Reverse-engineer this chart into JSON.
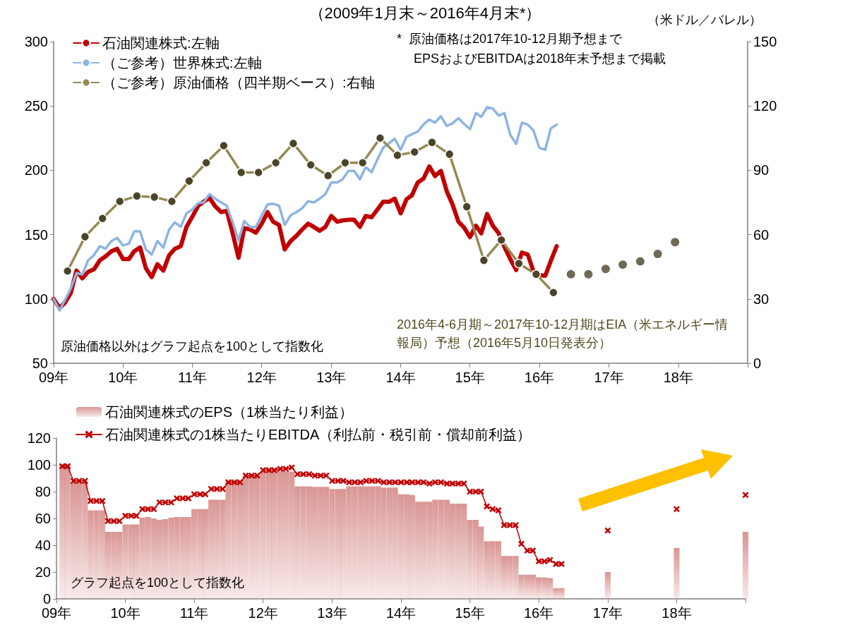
{
  "chart_data": [
    {
      "type": "line",
      "title": "（2009年1月末～2016年4月末*）",
      "y2label": "（米ドル／バレル）",
      "xlim": [
        "2009-01",
        "2019-01"
      ],
      "xticks": [
        {
          "value": "2009-01",
          "label": "09年"
        },
        {
          "value": "2010-01",
          "label": "10年"
        },
        {
          "value": "2011-01",
          "label": "11年"
        },
        {
          "value": "2012-01",
          "label": "12年"
        },
        {
          "value": "2013-01",
          "label": "13年"
        },
        {
          "value": "2014-01",
          "label": "14年"
        },
        {
          "value": "2015-01",
          "label": "15年"
        },
        {
          "value": "2016-01",
          "label": "16年"
        },
        {
          "value": "2017-01",
          "label": "17年"
        },
        {
          "value": "2018-01",
          "label": "18年"
        },
        {
          "value": "2019-01",
          "label": null
        }
      ],
      "ylim": [
        50,
        300
      ],
      "yticks": [
        50,
        100,
        150,
        200,
        250,
        300
      ],
      "y2lim": [
        0,
        150
      ],
      "y2ticks": [
        0,
        30,
        60,
        90,
        120,
        150
      ],
      "legend": "top left",
      "annotations": [
        "*  原油価格は2017年10-12月期予想まで",
        "EPSおよびEBITDAは2018年末予想まで掲載",
        "原油価格以外はグラフ起点を100として指数化",
        "2016年4-6月期～2017年10-12月期はEIA（米エネルギー情報局）予想（2016年5月10日発表分）"
      ],
      "series": [
        {
          "name": "石油関連株式:左軸",
          "color": "#c00000",
          "marker": "none",
          "x": [
            "2009-01",
            "2009-02",
            "2009-03",
            "2009-04",
            "2009-05",
            "2009-06",
            "2009-07",
            "2009-08",
            "2009-09",
            "2009-10",
            "2009-11",
            "2009-12",
            "2010-01",
            "2010-02",
            "2010-03",
            "2010-04",
            "2010-05",
            "2010-06",
            "2010-07",
            "2010-08",
            "2010-09",
            "2010-10",
            "2010-11",
            "2010-12",
            "2011-01",
            "2011-02",
            "2011-03",
            "2011-04",
            "2011-05",
            "2011-06",
            "2011-07",
            "2011-08",
            "2011-09",
            "2011-10",
            "2011-11",
            "2011-12",
            "2012-01",
            "2012-02",
            "2012-03",
            "2012-04",
            "2012-05",
            "2012-06",
            "2012-07",
            "2012-08",
            "2012-09",
            "2012-10",
            "2012-11",
            "2012-12",
            "2013-01",
            "2013-02",
            "2013-03",
            "2013-04",
            "2013-05",
            "2013-06",
            "2013-07",
            "2013-08",
            "2013-09",
            "2013-10",
            "2013-11",
            "2013-12",
            "2014-01",
            "2014-02",
            "2014-03",
            "2014-04",
            "2014-05",
            "2014-06",
            "2014-07",
            "2014-08",
            "2014-09",
            "2014-10",
            "2014-11",
            "2014-12",
            "2015-01",
            "2015-02",
            "2015-03",
            "2015-04",
            "2015-05",
            "2015-06",
            "2015-07",
            "2015-08",
            "2015-09",
            "2015-10",
            "2015-11",
            "2015-12",
            "2016-01",
            "2016-02",
            "2016-03",
            "2016-04"
          ],
          "values": [
            100,
            93,
            97,
            104.5,
            122,
            116,
            121,
            123,
            130,
            133,
            137,
            139,
            131,
            131,
            137,
            140,
            124,
            117,
            127,
            122,
            134,
            139,
            141,
            156,
            164,
            172.5,
            175.5,
            178.5,
            172,
            167.5,
            168.5,
            151,
            132,
            155,
            154,
            151.5,
            158.5,
            167.5,
            160,
            157.5,
            138.5,
            145,
            149,
            154,
            158.5,
            156,
            153,
            156,
            164.5,
            160,
            161,
            161.5,
            161.5,
            156,
            164.5,
            163.5,
            169.5,
            175.5,
            175.5,
            178,
            166.5,
            177.5,
            180.5,
            190.5,
            193.5,
            203,
            195.5,
            199.5,
            183.5,
            173.5,
            160,
            155.5,
            148,
            157,
            151,
            166,
            157,
            151,
            140.5,
            131,
            122.5,
            136,
            134.5,
            121.5,
            118.5,
            118,
            129.5,
            141
          ]
        },
        {
          "name": "（ご参考）世界株式:左軸",
          "color": "#8db4e2",
          "marker": "none",
          "x": [
            "2009-01",
            "2009-02",
            "2009-03",
            "2009-04",
            "2009-05",
            "2009-06",
            "2009-07",
            "2009-08",
            "2009-09",
            "2009-10",
            "2009-11",
            "2009-12",
            "2010-01",
            "2010-02",
            "2010-03",
            "2010-04",
            "2010-05",
            "2010-06",
            "2010-07",
            "2010-08",
            "2010-09",
            "2010-10",
            "2010-11",
            "2010-12",
            "2011-01",
            "2011-02",
            "2011-03",
            "2011-04",
            "2011-05",
            "2011-06",
            "2011-07",
            "2011-08",
            "2011-09",
            "2011-10",
            "2011-11",
            "2011-12",
            "2012-01",
            "2012-02",
            "2012-03",
            "2012-04",
            "2012-05",
            "2012-06",
            "2012-07",
            "2012-08",
            "2012-09",
            "2012-10",
            "2012-11",
            "2012-12",
            "2013-01",
            "2013-02",
            "2013-03",
            "2013-04",
            "2013-05",
            "2013-06",
            "2013-07",
            "2013-08",
            "2013-09",
            "2013-10",
            "2013-11",
            "2013-12",
            "2014-01",
            "2014-02",
            "2014-03",
            "2014-04",
            "2014-05",
            "2014-06",
            "2014-07",
            "2014-08",
            "2014-09",
            "2014-10",
            "2014-11",
            "2014-12",
            "2015-01",
            "2015-02",
            "2015-03",
            "2015-04",
            "2015-05",
            "2015-06",
            "2015-07",
            "2015-08",
            "2015-09",
            "2015-10",
            "2015-11",
            "2015-12",
            "2016-01",
            "2016-02",
            "2016-03",
            "2016-04"
          ],
          "values": [
            100,
            91,
            99,
            108,
            120,
            119,
            130,
            134,
            141,
            139,
            145,
            147.5,
            141.5,
            143,
            152.5,
            152.5,
            138.5,
            134.5,
            145,
            140,
            154,
            159.5,
            156,
            166.5,
            169.5,
            174.5,
            175,
            181.5,
            178,
            175,
            172.5,
            159.5,
            145.5,
            160.5,
            156,
            156,
            165,
            173.5,
            174,
            172.5,
            157.5,
            165,
            167.5,
            170.5,
            176,
            175,
            178,
            181.5,
            190.5,
            190.5,
            193,
            199.5,
            199.5,
            193,
            202.5,
            198.5,
            208.5,
            217.5,
            221,
            224.5,
            216,
            226,
            228,
            230,
            235.5,
            239.5,
            237,
            242,
            234.5,
            236.5,
            240.5,
            236,
            232,
            244.5,
            241.5,
            249,
            248,
            242.5,
            244.5,
            227.5,
            220.5,
            237,
            235.5,
            231,
            217.5,
            216,
            232.5,
            235.5
          ]
        },
        {
          "name": "（ご参考）原油価格（四半期ベース）:右軸",
          "color": "#948a54",
          "axis": "y2",
          "marker": "circle",
          "colors": [
            "#4a452a",
            "#4a452a",
            "#4a452a",
            "#4a452a",
            "#4a452a",
            "#4a452a",
            "#4a452a",
            "#4a452a",
            "#4a452a",
            "#4a452a",
            "#4a452a",
            "#4a452a",
            "#4a452a",
            "#4a452a",
            "#4a452a",
            "#4a452a",
            "#4a452a",
            "#4a452a",
            "#4a452a",
            "#4a452a",
            "#4a452a",
            "#4a452a",
            "#4a452a",
            "#4a452a",
            "#4a452a",
            "#4a452a",
            "#4a452a",
            "#4a452a",
            "#4a452a"
          ],
          "x": [
            "2009-03-15",
            "2009-06-15",
            "2009-09-15",
            "2009-12-15",
            "2010-03-15",
            "2010-06-15",
            "2010-09-15",
            "2010-12-15",
            "2011-03-15",
            "2011-06-15",
            "2011-09-15",
            "2011-12-15",
            "2012-03-15",
            "2012-06-15",
            "2012-09-15",
            "2012-12-15",
            "2013-03-15",
            "2013-06-15",
            "2013-09-15",
            "2013-12-15",
            "2014-03-15",
            "2014-06-15",
            "2014-09-15",
            "2014-12-15",
            "2015-03-15",
            "2015-06-15",
            "2015-09-15",
            "2015-12-15",
            "2016-03-15"
          ],
          "values": [
            43,
            59,
            67.5,
            75.5,
            78,
            77.5,
            75.5,
            85,
            93.5,
            101.5,
            89,
            89,
            93.5,
            102.5,
            92.5,
            87.5,
            93.5,
            93.5,
            105,
            97,
            98.5,
            103,
            97.5,
            73,
            48,
            57.5,
            46.5,
            41.5,
            33
          ]
        },
        {
          "type": "scatter",
          "color": "#4a452a",
          "axis": "y2",
          "marker": "circle",
          "x": [
            "2016-06-15",
            "2016-09-15",
            "2016-12-15",
            "2017-03-15",
            "2017-06-15",
            "2017-09-15",
            "2017-12-15"
          ],
          "values": [
            41.5,
            41.5,
            44,
            46,
            47.5,
            51,
            56.5
          ]
        }
      ]
    },
    {
      "type": "bar",
      "xlim": [
        "2009-01",
        "2019-01"
      ],
      "xticks": [
        {
          "value": "2009-01",
          "label": "09年"
        },
        {
          "value": "2010-01",
          "label": "10年"
        },
        {
          "value": "2011-01",
          "label": "11年"
        },
        {
          "value": "2012-01",
          "label": "12年"
        },
        {
          "value": "2013-01",
          "label": "13年"
        },
        {
          "value": "2014-01",
          "label": "14年"
        },
        {
          "value": "2015-01",
          "label": "15年"
        },
        {
          "value": "2016-01",
          "label": "16年"
        },
        {
          "value": "2017-01",
          "label": "17年"
        },
        {
          "value": "2018-01",
          "label": "18年"
        },
        {
          "value": "2019-01",
          "label": null
        }
      ],
      "ylim": [
        0,
        120
      ],
      "yticks": [
        0,
        20,
        40,
        60,
        80,
        100,
        120
      ],
      "legend": "top left",
      "annotations": [
        "グラフ起点を100として指数化"
      ],
      "x": [
        "2009-02",
        "2009-03",
        "2009-04",
        "2009-05",
        "2009-06",
        "2009-07",
        "2009-08",
        "2009-09",
        "2009-10",
        "2009-11",
        "2009-12",
        "2010-01",
        "2010-02",
        "2010-03",
        "2010-04",
        "2010-05",
        "2010-06",
        "2010-07",
        "2010-08",
        "2010-09",
        "2010-10",
        "2010-11",
        "2010-12",
        "2011-01",
        "2011-02",
        "2011-03",
        "2011-04",
        "2011-05",
        "2011-06",
        "2011-07",
        "2011-08",
        "2011-09",
        "2011-10",
        "2011-11",
        "2011-12",
        "2012-01",
        "2012-02",
        "2012-03",
        "2012-04",
        "2012-05",
        "2012-06",
        "2012-07",
        "2012-08",
        "2012-09",
        "2012-10",
        "2012-11",
        "2012-12",
        "2013-01",
        "2013-02",
        "2013-03",
        "2013-04",
        "2013-05",
        "2013-06",
        "2013-07",
        "2013-08",
        "2013-09",
        "2013-10",
        "2013-11",
        "2013-12",
        "2014-01",
        "2014-02",
        "2014-03",
        "2014-04",
        "2014-05",
        "2014-06",
        "2014-07",
        "2014-08",
        "2014-09",
        "2014-10",
        "2014-11",
        "2014-12",
        "2015-01",
        "2015-02",
        "2015-03",
        "2015-04",
        "2015-05",
        "2015-06",
        "2015-07",
        "2015-08",
        "2015-09",
        "2015-10",
        "2015-11",
        "2015-12",
        "2016-01",
        "2016-02",
        "2016-03",
        "2016-04",
        "2016-05",
        "2016-08",
        "2017-01",
        "2017-07",
        "2018-01",
        "2018-07",
        "2019-01"
      ],
      "series": [
        {
          "name": "石油関連株式のEPS（1株当たり利益）",
          "color": "#d99694",
          "values": [
            100,
            100,
            87,
            87,
            87,
            66,
            66,
            66,
            50,
            50,
            50,
            55.5,
            55.5,
            55.5,
            60.5,
            61,
            60,
            59,
            59.5,
            60.5,
            61,
            61,
            61,
            67,
            67,
            67,
            74,
            74,
            74,
            88,
            88,
            88,
            92,
            92,
            92,
            95,
            95,
            95,
            95,
            95,
            95,
            84,
            84,
            84,
            83.5,
            83.5,
            83.5,
            82,
            82,
            82,
            84,
            84,
            84,
            84,
            84,
            84,
            83,
            83,
            83,
            78,
            78,
            77.5,
            72.5,
            72.5,
            72.5,
            74,
            74,
            74,
            71,
            71,
            71,
            59,
            59,
            54,
            43,
            43,
            43,
            32,
            32,
            32,
            18,
            18,
            18,
            16,
            16,
            15.5,
            8,
            8,
            null,
            20,
            null,
            38,
            null,
            50
          ]
        },
        {
          "name": "石油関連株式の1株当たりEBITDA（利払前・税引前・償却前利益）",
          "type": "line",
          "color": "#c00000",
          "marker": "cross",
          "values": [
            99,
            99,
            88,
            88,
            88,
            73,
            73,
            73,
            58,
            58,
            58,
            62,
            62,
            62,
            67,
            67,
            67,
            72,
            72,
            72,
            75,
            75,
            75,
            78,
            78,
            78,
            82,
            82,
            82,
            87,
            87,
            87,
            92,
            92,
            92,
            96,
            96,
            96,
            97,
            97,
            98,
            93,
            93,
            93,
            92,
            92,
            92,
            88,
            88,
            88,
            87,
            87,
            87,
            88,
            88,
            88,
            87,
            87,
            87,
            87,
            87,
            87,
            87,
            87,
            86,
            87,
            87,
            86,
            86,
            86,
            86,
            80,
            80,
            80,
            69,
            67,
            66,
            55,
            55,
            55,
            41,
            36,
            36,
            28,
            28,
            29,
            26,
            26,
            null,
            51,
            null,
            67,
            null,
            77.5
          ]
        }
      ]
    }
  ]
}
